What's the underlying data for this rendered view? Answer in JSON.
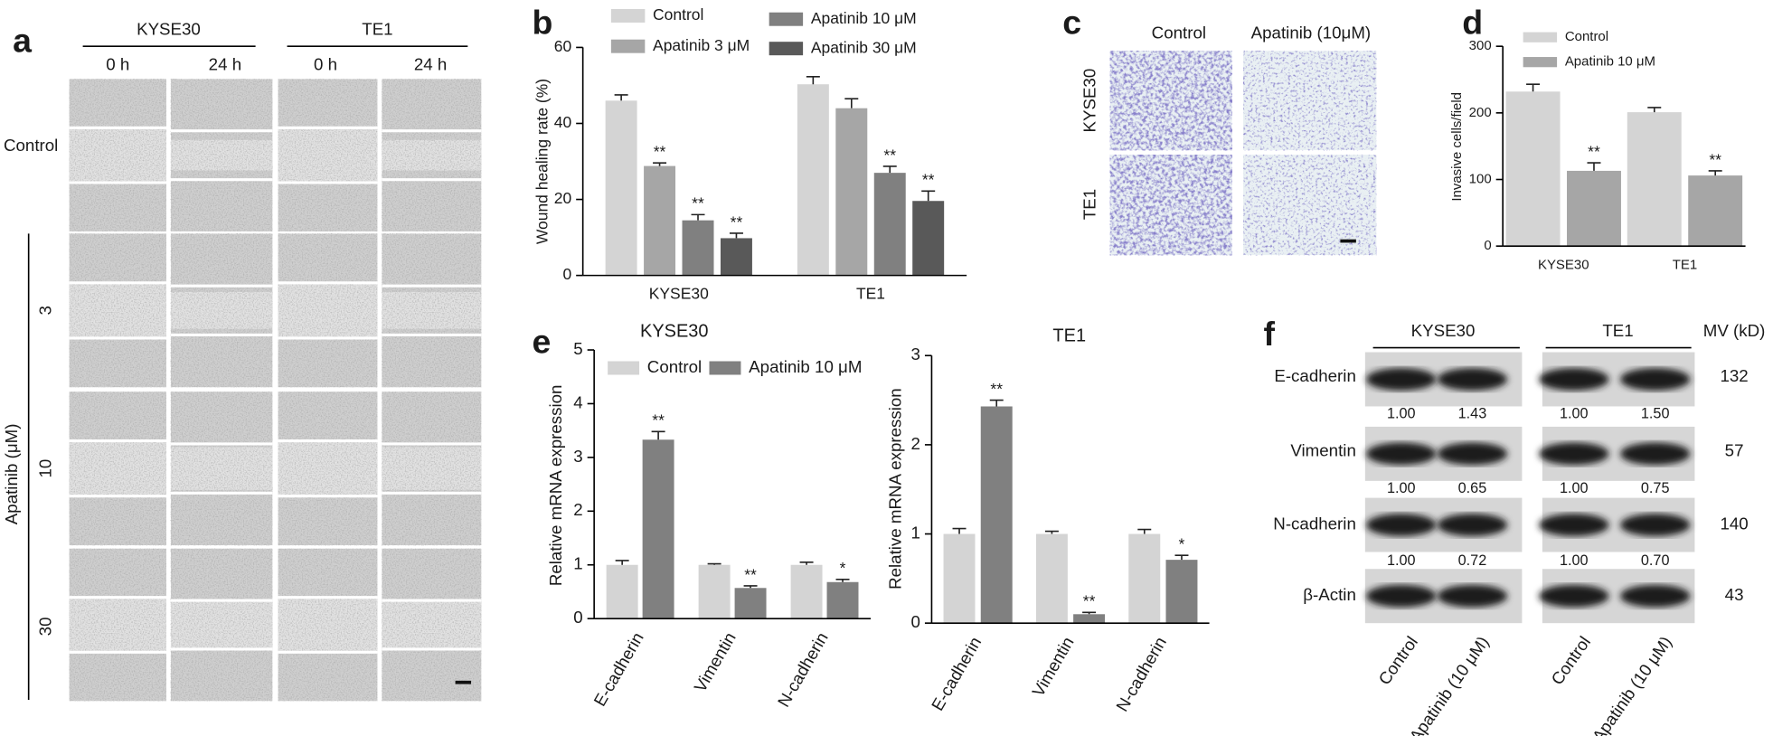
{
  "chart_data": [
    {
      "type": "bar",
      "label": "b",
      "ylabel": "Wound healing rate (%)",
      "categories": [
        "KYSE30",
        "TE1"
      ],
      "series": [
        {
          "name": "Control",
          "color": "#d4d4d4",
          "values": [
            46,
            50.3
          ],
          "errors": [
            1.5,
            2
          ]
        },
        {
          "name": "Apatinib 3 μM",
          "color": "#a6a6a6",
          "values": [
            28.8,
            44
          ],
          "errors": [
            0.8,
            2.5
          ],
          "annotations": [
            "**",
            null
          ]
        },
        {
          "name": "Apatinib 10 μM",
          "color": "#808080",
          "values": [
            14.5,
            27
          ],
          "errors": [
            1.5,
            1.7
          ],
          "annotations": [
            "**",
            "**"
          ]
        },
        {
          "name": "Apatinib 30 μM",
          "color": "#595959",
          "values": [
            9.8,
            19.6
          ],
          "errors": [
            1.3,
            2.6
          ],
          "annotations": [
            "**",
            "**"
          ]
        }
      ],
      "ylim": [
        0,
        60
      ],
      "yticks": [
        0,
        20,
        40,
        60
      ],
      "legend": "top"
    },
    {
      "type": "bar",
      "label": "d",
      "ylabel": "Invasive cells/field",
      "categories": [
        "KYSE30",
        "TE1"
      ],
      "series": [
        {
          "name": "Control",
          "color": "#d4d4d4",
          "values": [
            232,
            201
          ],
          "errors": [
            11,
            7
          ]
        },
        {
          "name": "Apatinib 10 μM",
          "color": "#a6a6a6",
          "values": [
            113,
            106
          ],
          "errors": [
            12,
            7
          ],
          "annotations": [
            "**",
            "**"
          ]
        }
      ],
      "ylim": [
        0,
        300
      ],
      "yticks": [
        0,
        100,
        200,
        300
      ],
      "legend": "top"
    },
    {
      "type": "bar",
      "label": "e",
      "title": "KYSE30",
      "ylabel": "Relative mRNA expression",
      "categories": [
        "E-cadherin",
        "Vimentin",
        "N-cadherin"
      ],
      "series": [
        {
          "name": "Control",
          "color": "#d4d4d4",
          "values": [
            1,
            1,
            1
          ],
          "errors": [
            0.08,
            0.02,
            0.05
          ]
        },
        {
          "name": "Apatinib 10 μM",
          "color": "#808080",
          "values": [
            3.33,
            0.57,
            0.68
          ],
          "errors": [
            0.15,
            0.04,
            0.05
          ],
          "annotations": [
            "**",
            "**",
            "*"
          ]
        }
      ],
      "ylim": [
        0,
        5
      ],
      "yticks": [
        0,
        1,
        2,
        3,
        4,
        5
      ],
      "legend": "top"
    },
    {
      "type": "bar",
      "title": "TE1",
      "ylabel": "Relative mRNA expression",
      "categories": [
        "E-cadherin",
        "Vimentin",
        "N-cadherin"
      ],
      "series": [
        {
          "color": "#d4d4d4",
          "values": [
            1,
            1,
            1
          ],
          "errors": [
            0.06,
            0.03,
            0.05
          ]
        },
        {
          "color": "#808080",
          "values": [
            2.43,
            0.1,
            0.71
          ],
          "errors": [
            0.07,
            0.02,
            0.05
          ],
          "annotations": [
            "**",
            "**",
            "*"
          ]
        }
      ],
      "ylim": [
        0,
        3
      ],
      "yticks": [
        0,
        1,
        2,
        3
      ]
    }
  ],
  "panel_a": {
    "label": "a",
    "groups": [
      "KYSE30",
      "TE1"
    ],
    "times": [
      "0 h",
      "24 h",
      "0 h",
      "24 h"
    ],
    "rows": [
      "Control",
      "3",
      "10",
      "30"
    ],
    "row_group": "Apatinib (μM)"
  },
  "panel_c": {
    "label": "c",
    "columns": [
      "Control",
      "Apatinib (10μM)"
    ],
    "rows": [
      "KYSE30",
      "TE1"
    ]
  },
  "panel_f": {
    "label": "f",
    "groups": [
      "KYSE30",
      "TE1"
    ],
    "mw_header": "MV (kD)",
    "lanes": [
      "Control",
      "Apatinib (10 μM)",
      "Control",
      "Apatinib (10 μM)"
    ],
    "rows": [
      {
        "protein": "E-cadherin",
        "mw": 132,
        "quant": [
          "1.00",
          "1.43",
          "1.00",
          "1.50"
        ]
      },
      {
        "protein": "Vimentin",
        "mw": 57,
        "quant": [
          "1.00",
          "0.65",
          "1.00",
          "0.75"
        ]
      },
      {
        "protein": "N-cadherin",
        "mw": 140,
        "quant": [
          "1.00",
          "0.72",
          "1.00",
          "0.70"
        ]
      },
      {
        "protein": "β-Actin",
        "mw": 43
      }
    ]
  }
}
